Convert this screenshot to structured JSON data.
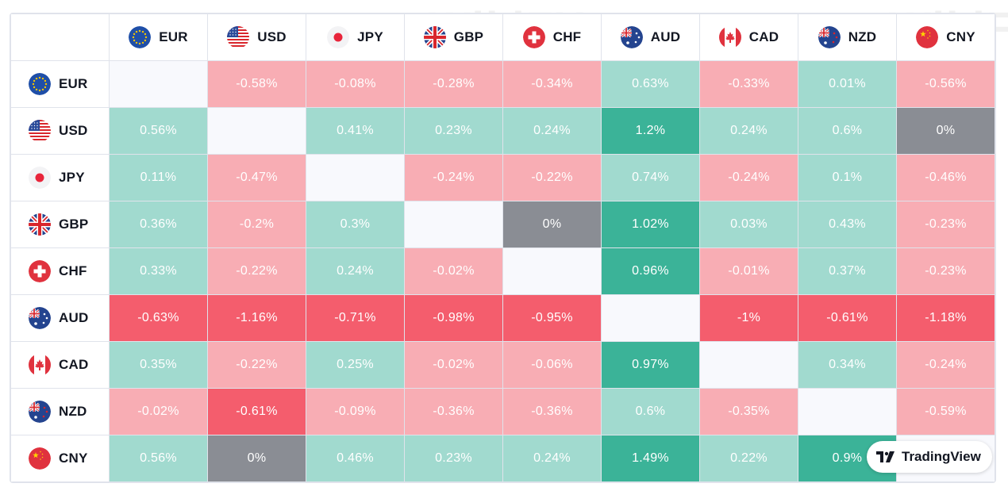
{
  "brand": {
    "name": "TradingView"
  },
  "watermark": {
    "text": "WikiFX"
  },
  "currencies": [
    "EUR",
    "USD",
    "JPY",
    "GBP",
    "CHF",
    "AUD",
    "CAD",
    "NZD",
    "CNY"
  ],
  "flag_icons": {
    "EUR": "eu-flag-icon",
    "USD": "us-flag-icon",
    "JPY": "japan-flag-icon",
    "GBP": "uk-flag-icon",
    "CHF": "switzerland-flag-icon",
    "AUD": "australia-flag-icon",
    "CAD": "canada-flag-icon",
    "NZD": "new-zealand-flag-icon",
    "CNY": "china-flag-icon"
  },
  "colors": {
    "strong_positive": "#3bb398",
    "positive": "#a1dacf",
    "negative": "#f8adb4",
    "strong_negative": "#f45d6d",
    "neutral": "#8a8d94",
    "empty": "#f8f9fd"
  },
  "chart_data": {
    "type": "heatmap",
    "rows": [
      "EUR",
      "USD",
      "JPY",
      "GBP",
      "CHF",
      "AUD",
      "CAD",
      "NZD",
      "CNY"
    ],
    "columns": [
      "EUR",
      "USD",
      "JPY",
      "GBP",
      "CHF",
      "AUD",
      "CAD",
      "NZD",
      "CNY"
    ],
    "unit": "%",
    "values": [
      [
        null,
        -0.58,
        -0.08,
        -0.28,
        -0.34,
        0.63,
        -0.33,
        0.01,
        -0.56
      ],
      [
        0.56,
        null,
        0.41,
        0.23,
        0.24,
        1.2,
        0.24,
        0.6,
        0
      ],
      [
        0.11,
        -0.47,
        null,
        -0.24,
        -0.22,
        0.74,
        -0.24,
        0.1,
        -0.46
      ],
      [
        0.36,
        -0.2,
        0.3,
        null,
        0,
        1.02,
        0.03,
        0.43,
        -0.23
      ],
      [
        0.33,
        -0.22,
        0.24,
        -0.02,
        null,
        0.96,
        -0.01,
        0.37,
        -0.23
      ],
      [
        -0.63,
        -1.16,
        -0.71,
        -0.98,
        -0.95,
        null,
        -1,
        -0.61,
        -1.18
      ],
      [
        0.35,
        -0.22,
        0.25,
        -0.02,
        -0.06,
        0.97,
        null,
        0.34,
        -0.24
      ],
      [
        -0.02,
        -0.61,
        -0.09,
        -0.36,
        -0.36,
        0.6,
        -0.35,
        null,
        -0.59
      ],
      [
        0.56,
        0,
        0.46,
        0.23,
        0.24,
        1.49,
        0.22,
        0.9,
        null
      ]
    ],
    "labels": [
      [
        "",
        "-0.58%",
        "-0.08%",
        "-0.28%",
        "-0.34%",
        "0.63%",
        "-0.33%",
        "0.01%",
        "-0.56%"
      ],
      [
        "0.56%",
        "",
        "0.41%",
        "0.23%",
        "0.24%",
        "1.2%",
        "0.24%",
        "0.6%",
        "0%"
      ],
      [
        "0.11%",
        "-0.47%",
        "",
        "-0.24%",
        "-0.22%",
        "0.74%",
        "-0.24%",
        "0.1%",
        "-0.46%"
      ],
      [
        "0.36%",
        "-0.2%",
        "0.3%",
        "",
        "0%",
        "1.02%",
        "0.03%",
        "0.43%",
        "-0.23%"
      ],
      [
        "0.33%",
        "-0.22%",
        "0.24%",
        "-0.02%",
        "",
        "0.96%",
        "-0.01%",
        "0.37%",
        "-0.23%"
      ],
      [
        "-0.63%",
        "-1.16%",
        "-0.71%",
        "-0.98%",
        "-0.95%",
        "",
        "-1%",
        "-0.61%",
        "-1.18%"
      ],
      [
        "0.35%",
        "-0.22%",
        "0.25%",
        "-0.02%",
        "-0.06%",
        "0.97%",
        "",
        "0.34%",
        "-0.24%"
      ],
      [
        "-0.02%",
        "-0.61%",
        "-0.09%",
        "-0.36%",
        "-0.36%",
        "0.6%",
        "-0.35%",
        "",
        "-0.59%"
      ],
      [
        "0.56%",
        "0%",
        "0.46%",
        "0.23%",
        "0.24%",
        "1.49%",
        "0.22%",
        "0.9%",
        ""
      ]
    ]
  }
}
